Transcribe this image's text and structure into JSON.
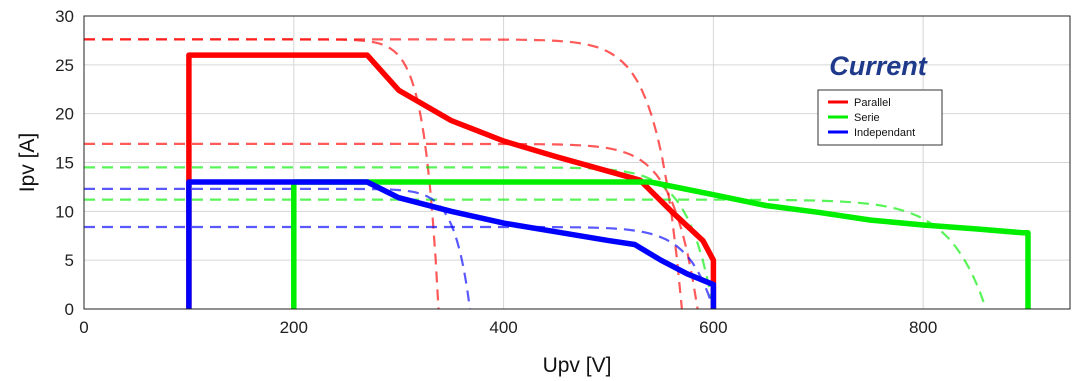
{
  "chart_data": {
    "type": "line",
    "title": "",
    "xlabel": "Upv [V]",
    "ylabel": "Ipv [A]",
    "xlim": [
      0,
      940
    ],
    "ylim": [
      0,
      30
    ],
    "xticks": [
      0,
      200,
      400,
      600,
      800
    ],
    "yticks": [
      0,
      5,
      10,
      15,
      20,
      25,
      30
    ],
    "grid": true,
    "annotation": "Current",
    "legend_position": "right",
    "legend": [
      "Parallel",
      "Serie",
      "Independant"
    ],
    "colors": {
      "Parallel": "#ff0000",
      "Serie": "#00ee00",
      "Independant": "#0000ff"
    },
    "series": [
      {
        "name": "Parallel",
        "color": "#ff0000",
        "style": "solid",
        "points": [
          [
            100,
            0
          ],
          [
            100,
            26
          ],
          [
            270,
            26
          ],
          [
            300,
            22.4
          ],
          [
            350,
            19.3
          ],
          [
            400,
            17.2
          ],
          [
            450,
            15.6
          ],
          [
            500,
            14.1
          ],
          [
            530,
            13.2
          ],
          [
            560,
            10
          ],
          [
            590,
            7
          ],
          [
            600,
            5
          ],
          [
            600,
            0
          ]
        ]
      },
      {
        "name": "Serie",
        "color": "#00ee00",
        "style": "solid",
        "points": [
          [
            200,
            0
          ],
          [
            200,
            13
          ],
          [
            540,
            13
          ],
          [
            600,
            11.7
          ],
          [
            650,
            10.6
          ],
          [
            700,
            9.9
          ],
          [
            750,
            9.1
          ],
          [
            800,
            8.6
          ],
          [
            850,
            8.2
          ],
          [
            895,
            7.8
          ],
          [
            900,
            7.8
          ],
          [
            900,
            0
          ]
        ]
      },
      {
        "name": "Independant",
        "color": "#0000ff",
        "style": "solid",
        "points": [
          [
            100,
            0
          ],
          [
            100,
            13
          ],
          [
            270,
            13
          ],
          [
            300,
            11.4
          ],
          [
            350,
            10
          ],
          [
            400,
            8.8
          ],
          [
            450,
            7.9
          ],
          [
            500,
            7
          ],
          [
            525,
            6.6
          ],
          [
            550,
            5
          ],
          [
            575,
            3.6
          ],
          [
            600,
            2.5
          ],
          [
            600,
            0
          ]
        ]
      },
      {
        "name": "",
        "color": "#ff0000",
        "style": "dashed",
        "isc": 27.6,
        "voc": 570,
        "points": []
      },
      {
        "name": "",
        "color": "#ff0000",
        "style": "dashed",
        "isc": 16.9,
        "voc": 585,
        "points": []
      },
      {
        "name": "",
        "color": "#ff0000",
        "style": "dashed",
        "isc": 27.6,
        "voc": 338,
        "points": []
      },
      {
        "name": "",
        "color": "#00ee00",
        "style": "dashed",
        "isc": 14.5,
        "voc": 600,
        "points": []
      },
      {
        "name": "",
        "color": "#00ee00",
        "style": "dashed",
        "isc": 11.2,
        "voc": 860,
        "points": []
      },
      {
        "name": "",
        "color": "#0000ff",
        "style": "dashed",
        "isc": 12.3,
        "voc": 368,
        "points": []
      },
      {
        "name": "",
        "color": "#0000ff",
        "style": "dashed",
        "isc": 8.4,
        "voc": 600,
        "points": []
      }
    ]
  }
}
